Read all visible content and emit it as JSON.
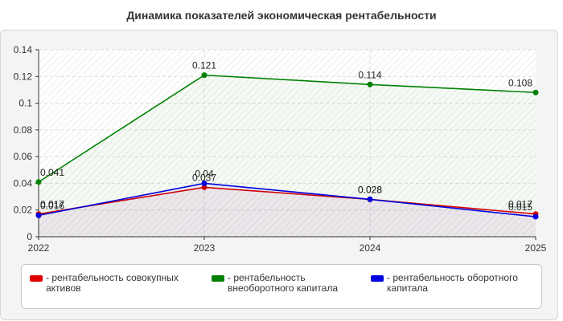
{
  "chart_data": {
    "type": "line",
    "title": "Динамика показателей экономическая рентабельности",
    "x": [
      "2022",
      "2023",
      "2024",
      "2025"
    ],
    "ylim": [
      0,
      0.14
    ],
    "yticks": [
      "0",
      "0.02",
      "0.04",
      "0.06",
      "0.08",
      "0.1",
      "0.12",
      "0.14"
    ],
    "grid": true,
    "legend_position": "bottom",
    "series": [
      {
        "name": "- рентабельность совокупных активов",
        "color": "#e00000",
        "values": [
          0.017,
          0.037,
          0.028,
          0.017
        ],
        "labels": [
          "0.017",
          "0.037",
          "0.028",
          "0.017"
        ]
      },
      {
        "name": "- рентабельность внеоборотного капитала",
        "color": "#008000",
        "values": [
          0.041,
          0.121,
          0.114,
          0.108
        ],
        "labels": [
          "0.041",
          "0.121",
          "0.114",
          "0.108"
        ]
      },
      {
        "name": "- рентабельность оборотного капитала",
        "color": "#0000e0",
        "values": [
          0.016,
          0.04,
          0.028,
          0.015
        ],
        "labels": [
          "0.016",
          "0.04",
          "0.028",
          "0.015"
        ]
      }
    ]
  }
}
